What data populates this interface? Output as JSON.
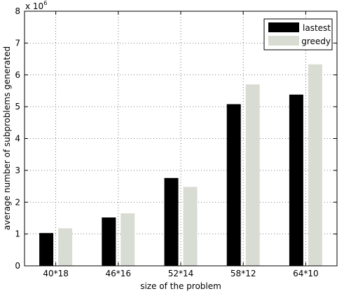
{
  "chart_data": {
    "type": "bar",
    "title": "",
    "xlabel": "size of the problem",
    "ylabel": "average number of subproblems generated",
    "y_multiplier": {
      "base": "x 10",
      "exponent": "6"
    },
    "categories": [
      "40*18",
      "46*16",
      "52*14",
      "58*12",
      "64*10"
    ],
    "series": [
      {
        "name": "lastest",
        "values": [
          1.03,
          1.52,
          2.76,
          5.08,
          5.38
        ],
        "color": "#000000"
      },
      {
        "name": "greedy",
        "values": [
          1.18,
          1.65,
          2.48,
          5.7,
          6.33
        ],
        "color": "#d9dcd3"
      }
    ],
    "ylim": [
      0,
      8
    ],
    "yticks": [
      0,
      1,
      2,
      3,
      4,
      5,
      6,
      7,
      8
    ],
    "grid": true,
    "legend_position": "top-right"
  }
}
